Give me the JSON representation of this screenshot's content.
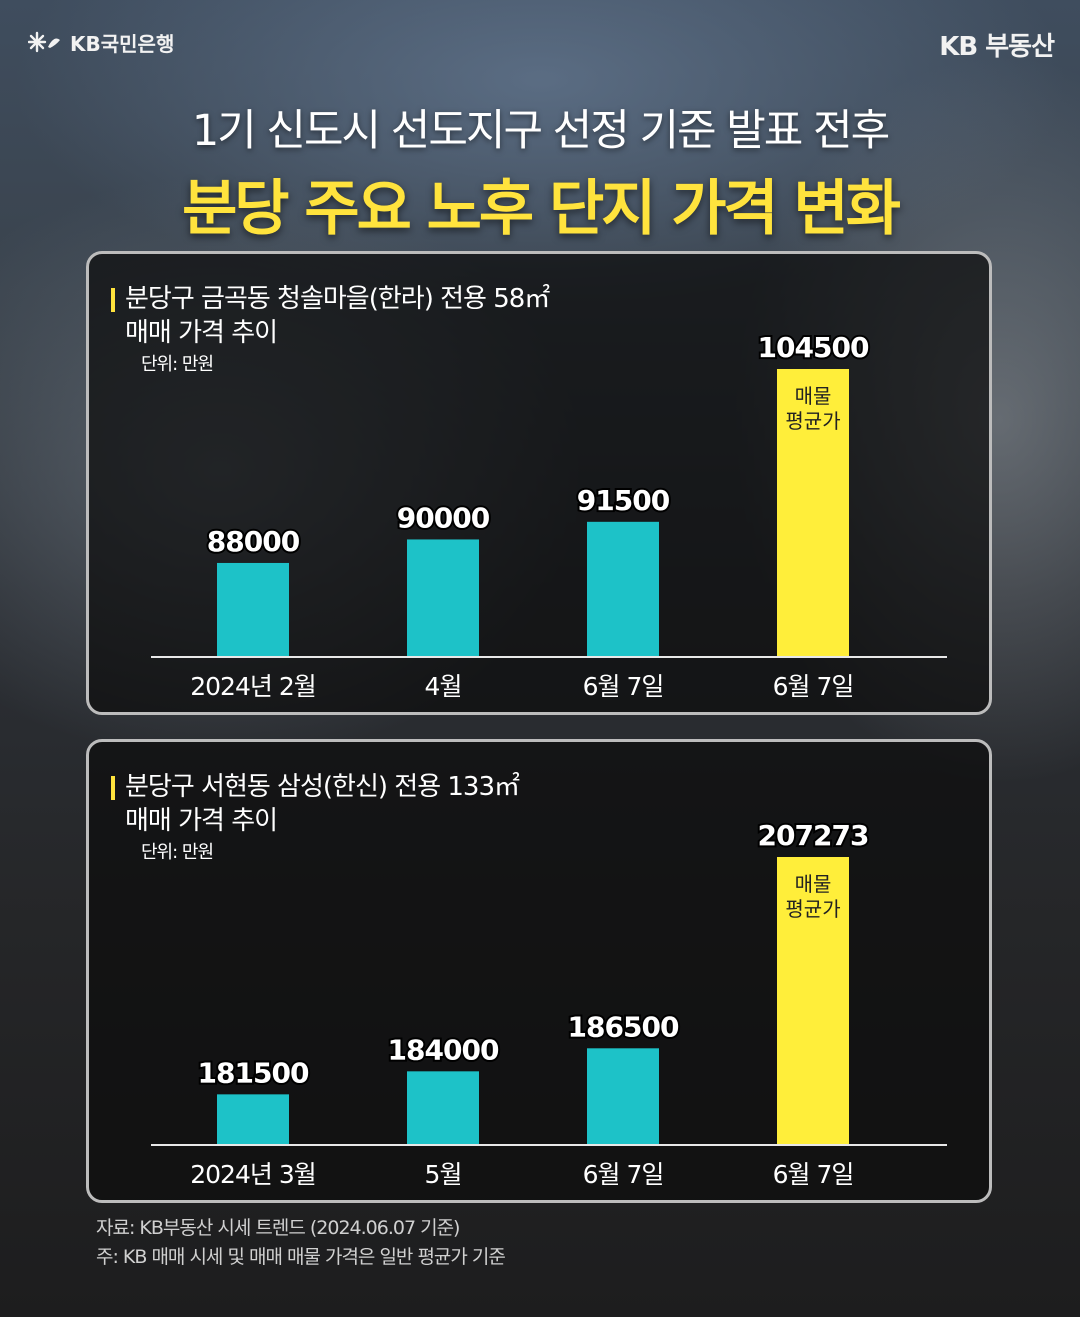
{
  "header": {
    "logo_left": "KB국민은행",
    "logo_right": "KB 부동산"
  },
  "title": {
    "line1": "1기 신도시 선도지구 선정 기준 발표 전후",
    "line2": "분당 주요 노후 단지 가격 변화"
  },
  "colors": {
    "bar": "#1dc2c8",
    "highlight_bar": "#ffee3a",
    "title_accent": "#ffe33d"
  },
  "chart_data": [
    {
      "type": "bar",
      "title": "분당구 금곡동 청솔마을(한라) 전용 58㎡",
      "subtitle": "매매 가격 추이",
      "ylabel": "단위: 만원",
      "categories": [
        "2024년 2월",
        "4월",
        "6월 7일",
        "6월 7일"
      ],
      "values": [
        88000,
        90000,
        91500,
        104500
      ],
      "highlight_index": 3,
      "highlight_label": [
        "매물",
        "평균가"
      ],
      "ylim": [
        80000,
        104500
      ]
    },
    {
      "type": "bar",
      "title": "분당구 서현동 삼성(한신) 전용 133㎡",
      "subtitle": "매매 가격 추이",
      "ylabel": "단위: 만원",
      "categories": [
        "2024년 3월",
        "5월",
        "6월 7일",
        "6월 7일"
      ],
      "values": [
        181500,
        184000,
        186500,
        207273
      ],
      "highlight_index": 3,
      "highlight_label": [
        "매물",
        "평균가"
      ],
      "ylim": [
        176000,
        207273
      ]
    }
  ],
  "footer": {
    "source": "자료: KB부동산 시세 트렌드 (2024.06.07 기준)",
    "note": "주: KB 매매 시세 및 매매 매물 가격은 일반 평균가 기준"
  }
}
